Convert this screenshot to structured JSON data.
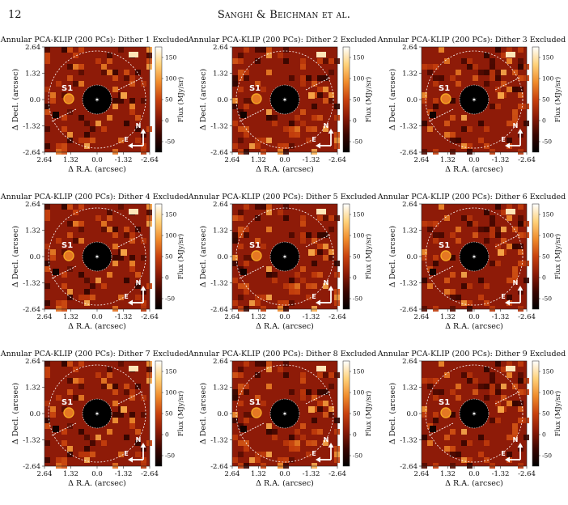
{
  "page": {
    "number": "12",
    "running_head": "Sanghi & Beichman et al."
  },
  "figure": {
    "panel_titles": [
      "Annular PCA-KLIP (200 PCs): Dither 1 Excluded",
      "Annular PCA-KLIP (200 PCs): Dither 2 Excluded",
      "Annular PCA-KLIP (200 PCs): Dither 3 Excluded",
      "Annular PCA-KLIP (200 PCs): Dither 4 Excluded",
      "Annular PCA-KLIP (200 PCs): Dither 5 Excluded",
      "Annular PCA-KLIP (200 PCs): Dither 6 Excluded",
      "Annular PCA-KLIP (200 PCs): Dither 7 Excluded",
      "Annular PCA-KLIP (200 PCs): Dither 8 Excluded",
      "Annular PCA-KLIP (200 PCs): Dither 9 Excluded"
    ],
    "x_axis_label": "Δ R.A. (arcsec)",
    "y_axis_label": "Δ Decl. (arcsec)",
    "x_ticks": [
      "2.64",
      "1.32",
      "0.0",
      "-1.32",
      "-2.64"
    ],
    "y_ticks": [
      "2.64",
      "1.32",
      "0.0",
      "-1.32",
      "-2.64"
    ],
    "colorbar_label": "Flux (MJy/sr)",
    "colorbar_ticks": [
      "150",
      "100",
      "50",
      "0",
      "-50"
    ],
    "source_label": "S1",
    "north_label": "N",
    "east_label": "E",
    "colors": {
      "background_map": "#8e1b08",
      "coronagraph_mask": "#000000",
      "source_circle": "#f5a623",
      "colormap": [
        "#000000",
        "#3a0500",
        "#8b1a06",
        "#c8410d",
        "#f08c2c",
        "#ffd27a",
        "#ffffff"
      ]
    }
  }
}
